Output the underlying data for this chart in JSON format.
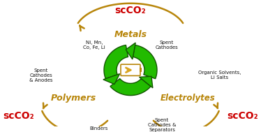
{
  "bg_color": "#ffffff",
  "recycle_color": "#22bb00",
  "recycle_outline": "#115500",
  "arrow_color": "#b8860b",
  "battery_fill": "#ffffff",
  "battery_outline": "#b8860b",
  "battery_bolt": "#daa520",
  "metals_label": "Metals",
  "polymers_label": "Polymers",
  "electrolytes_label": "Electrolytes",
  "scco2_top": "scCO₂",
  "scco2_bl": "scCO₂",
  "scco2_br": "scCO₂",
  "label_color": "#b8860b",
  "scco2_color": "#cc0000",
  "text_top_left": "Ni, Mn,\nCo, Fe, Li",
  "text_top_right": "Spent\nCathodes",
  "text_mid_left": "Spent\nCathodes\n& Anodes",
  "text_mid_right": "Organic Solvents,\nLi Salts",
  "text_bot_left": "Binders",
  "text_bot_right": "Spent\nCathodes &\nSeparators",
  "figsize": [
    3.74,
    1.89
  ],
  "dpi": 100
}
